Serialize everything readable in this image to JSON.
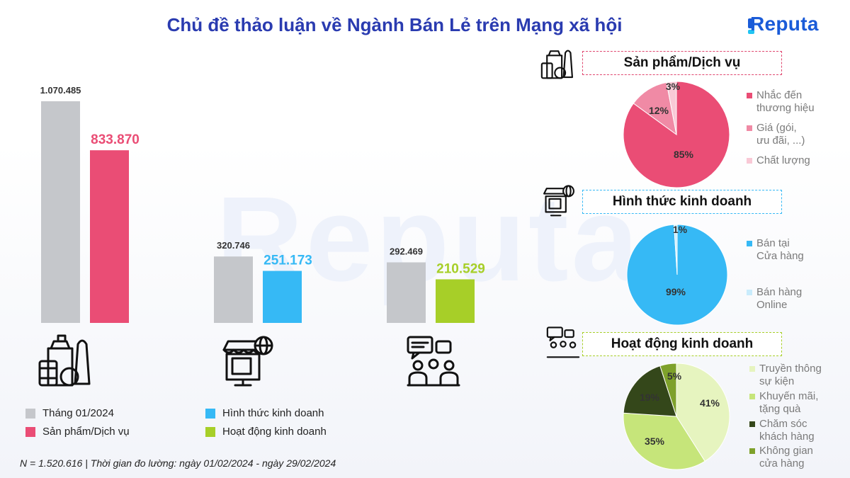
{
  "title": "Chủ đề thảo luận về Ngành Bán Lẻ trên Mạng xã hội",
  "logo": "Reputa",
  "footer": "N = 1.520.616 | Thời gian đo lường: ngày 01/02/2024 - ngày 29/02/2024",
  "colors": {
    "gray": "#c5c7cb",
    "product": "#ea4d75",
    "business_form": "#36b9f5",
    "business_activity": "#a7cf28"
  },
  "legend": [
    {
      "label": "Tháng 01/2024",
      "color": "#c5c7cb"
    },
    {
      "label": "Hình thức kinh doanh",
      "color": "#36b9f5"
    },
    {
      "label": "Sản phẩm/Dịch vụ",
      "color": "#ea4d75"
    },
    {
      "label": "Hoạt động kinh doanh",
      "color": "#a7cf28"
    }
  ],
  "icons": [
    "grocery-icon",
    "online-shop-icon",
    "meeting-chat-icon"
  ],
  "chart_data": [
    {
      "type": "bar",
      "groups": [
        {
          "previous": 1070485,
          "previous_label": "1.070.485",
          "current": 833870,
          "current_label": "833.870",
          "color": "#ea4d75"
        },
        {
          "previous": 320746,
          "previous_label": "320.746",
          "current": 251173,
          "current_label": "251.173",
          "color": "#36b9f5"
        },
        {
          "previous": 292469,
          "previous_label": "292.469",
          "current": 210529,
          "current_label": "210.529",
          "color": "#a7cf28"
        }
      ],
      "ylim": [
        0,
        1070485
      ]
    },
    {
      "type": "pie",
      "title": "Sản phẩm/Dịch vụ",
      "icon": "grocery-icon",
      "border": "#e0476f",
      "slices": [
        {
          "label": "Nhắc đến\nthương hiệu",
          "value": 85,
          "text": "85%",
          "color": "#ea4d75"
        },
        {
          "label": "Giá (gói,\nưu đãi, ...)",
          "value": 12,
          "text": "12%",
          "color": "#f08aa5"
        },
        {
          "label": "Chất lượng",
          "value": 3,
          "text": "3%",
          "color": "#f9c9d6"
        }
      ]
    },
    {
      "type": "pie",
      "title": "Hình thức kinh doanh",
      "icon": "online-shop-icon",
      "border": "#36b9f5",
      "slices": [
        {
          "label": "Bán tại\nCửa hàng",
          "value": 99,
          "text": "99%",
          "color": "#36b9f5"
        },
        {
          "label": "Bán hàng\nOnline",
          "value": 1,
          "text": "1%",
          "color": "#c9ecfc"
        }
      ]
    },
    {
      "type": "pie",
      "title": "Hoạt động kinh doanh",
      "icon": "meeting-chat-icon",
      "border": "#a7cf28",
      "slices": [
        {
          "label": "Truyền thông\nsự kiện",
          "value": 41,
          "text": "41%",
          "color": "#e6f4bf"
        },
        {
          "label": "Khuyến mãi,\ntặng quà",
          "value": 35,
          "text": "35%",
          "color": "#c6e57a"
        },
        {
          "label": "Chăm sóc\nkhách hàng",
          "value": 19,
          "text": "19%",
          "color": "#34471a"
        },
        {
          "label": "Không gian\ncửa hàng",
          "value": 5,
          "text": "5%",
          "color": "#7ea12b"
        }
      ]
    }
  ]
}
